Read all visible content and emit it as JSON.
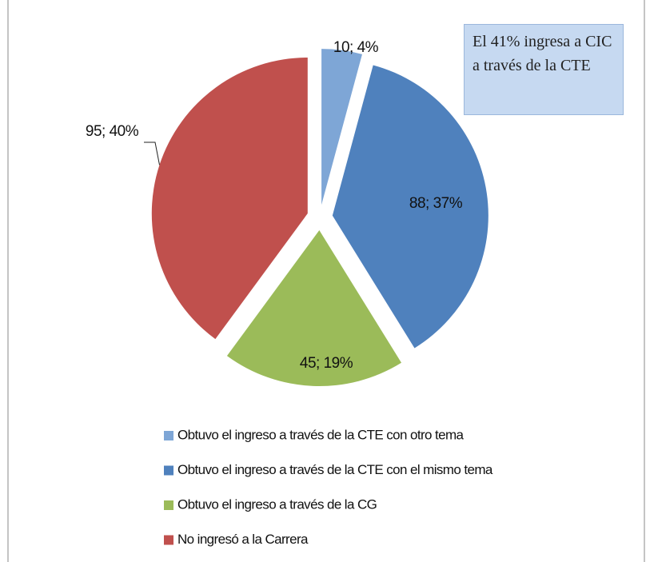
{
  "chart_data": {
    "type": "pie",
    "categories": [
      "Obtuvo el ingreso a través de la CTE con otro tema",
      "Obtuvo el ingreso a través de la CTE con el mismo tema",
      "Obtuvo el ingreso a través de la CG",
      "No ingresó a la Carrera"
    ],
    "values": [
      10,
      88,
      45,
      95
    ],
    "value_labels": [
      "10; 4%",
      "88; 37%",
      "45; 19%",
      "95; 40%"
    ],
    "colors": [
      "#7ea6d6",
      "#4f81bd",
      "#9bbb59",
      "#c0504d"
    ],
    "annotation": "El 41% ingresa a CIC  a través de la CTE"
  }
}
